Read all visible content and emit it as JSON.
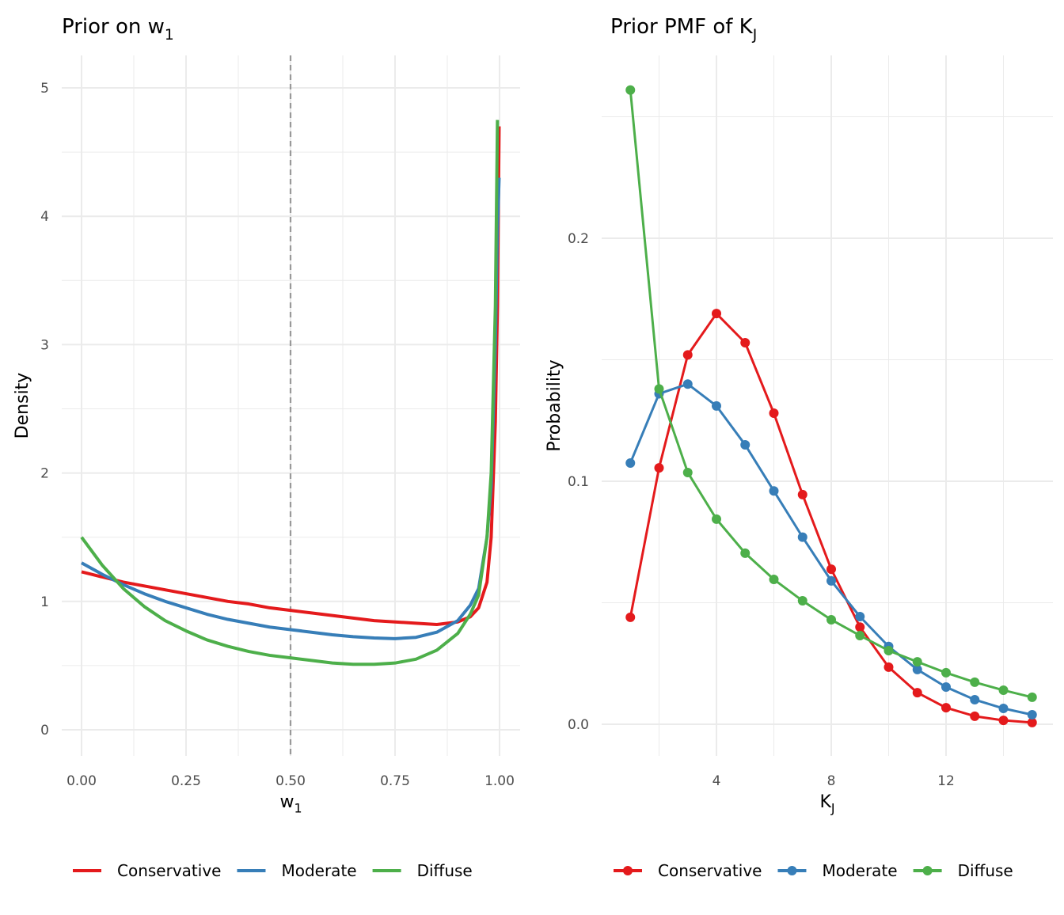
{
  "colors": {
    "Conservative": "#E41A1C",
    "Moderate": "#377EB8",
    "Diffuse": "#4DAF4A",
    "grid": "#EBEBEB",
    "reference_line": "#999999"
  },
  "chart_data": [
    {
      "type": "line",
      "title": "Prior on w",
      "title_subscript": "1",
      "xlabel": "w",
      "xlabel_subscript": "1",
      "ylabel": "Density",
      "xlim": [
        0,
        1
      ],
      "ylim": [
        0,
        5
      ],
      "x_ticks": [
        "0.00",
        "0.25",
        "0.50",
        "0.75",
        "1.00"
      ],
      "y_ticks": [
        "0",
        "1",
        "2",
        "3",
        "4",
        "5"
      ],
      "grid": true,
      "legend_position": "bottom",
      "reference_line": {
        "x": 0.5,
        "style": "dashed"
      },
      "x": [
        0,
        0.05,
        0.1,
        0.15,
        0.2,
        0.25,
        0.3,
        0.35,
        0.4,
        0.45,
        0.5,
        0.55,
        0.6,
        0.65,
        0.7,
        0.75,
        0.8,
        0.85,
        0.9,
        0.93,
        0.95,
        0.97,
        0.98,
        0.99,
        0.995,
        0.999
      ],
      "series": [
        {
          "name": "Conservative",
          "values": [
            1.23,
            1.19,
            1.15,
            1.12,
            1.09,
            1.06,
            1.03,
            1.0,
            0.98,
            0.95,
            0.93,
            0.91,
            0.89,
            0.87,
            0.85,
            0.84,
            0.83,
            0.82,
            0.84,
            0.88,
            0.95,
            1.15,
            1.5,
            2.4,
            3.3,
            4.7
          ]
        },
        {
          "name": "Moderate",
          "values": [
            1.3,
            1.21,
            1.13,
            1.06,
            1.0,
            0.95,
            0.9,
            0.86,
            0.83,
            0.8,
            0.78,
            0.76,
            0.74,
            0.725,
            0.715,
            0.71,
            0.72,
            0.76,
            0.85,
            0.97,
            1.1,
            1.5,
            1.9,
            3.0,
            3.9,
            4.3
          ]
        },
        {
          "name": "Diffuse",
          "values": [
            1.5,
            1.28,
            1.1,
            0.96,
            0.85,
            0.77,
            0.7,
            0.65,
            0.61,
            0.58,
            0.56,
            0.54,
            0.52,
            0.51,
            0.51,
            0.52,
            0.55,
            0.62,
            0.75,
            0.9,
            1.05,
            1.5,
            2.0,
            3.3,
            4.75,
            null
          ]
        }
      ]
    },
    {
      "type": "line",
      "markers": true,
      "title": "Prior PMF of K",
      "title_subscript": "J",
      "xlabel": "K",
      "xlabel_subscript": "J",
      "ylabel": "Probability",
      "xlim": [
        0.5,
        15.5
      ],
      "ylim": [
        -0.012,
        0.265
      ],
      "x_ticks": [
        "4",
        "8",
        "12"
      ],
      "y_ticks": [
        "0.0",
        "0.1",
        "0.2"
      ],
      "grid": true,
      "legend_position": "bottom",
      "x": [
        1,
        2,
        3,
        4,
        5,
        6,
        7,
        8,
        9,
        10,
        11,
        12,
        13,
        14,
        15
      ],
      "series": [
        {
          "name": "Conservative",
          "values": [
            0.044,
            0.1055,
            0.152,
            0.169,
            0.157,
            0.128,
            0.0945,
            0.0638,
            0.04,
            0.0235,
            0.013,
            0.0068,
            0.0033,
            0.0016,
            0.0007
          ]
        },
        {
          "name": "Moderate",
          "values": [
            0.1075,
            0.136,
            0.14,
            0.131,
            0.115,
            0.096,
            0.077,
            0.059,
            0.0443,
            0.032,
            0.0225,
            0.0153,
            0.0101,
            0.0065,
            0.0039
          ]
        },
        {
          "name": "Diffuse",
          "values": [
            0.261,
            0.138,
            0.1036,
            0.0844,
            0.0704,
            0.0596,
            0.0508,
            0.043,
            0.0365,
            0.0303,
            0.0257,
            0.0212,
            0.0173,
            0.014,
            0.0111
          ]
        }
      ]
    }
  ]
}
